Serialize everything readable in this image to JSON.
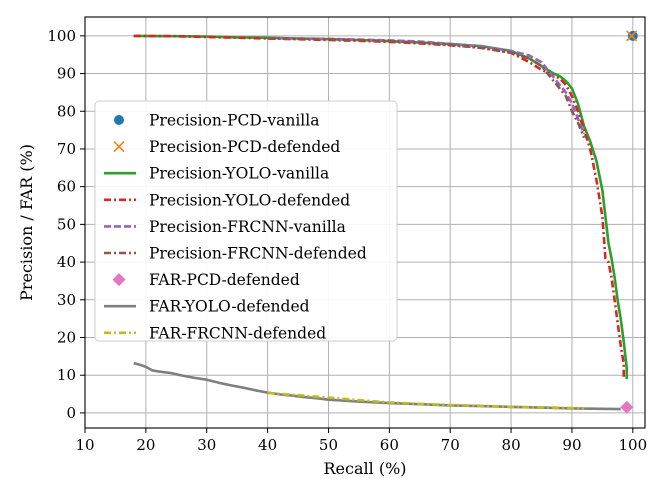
{
  "chart_data": {
    "type": "line",
    "title": "",
    "xlabel": "Recall (%)",
    "ylabel": "Precision / FAR (%)",
    "xlim": [
      10,
      102
    ],
    "ylim": [
      -4,
      105
    ],
    "xticks": [
      10,
      20,
      30,
      40,
      50,
      60,
      70,
      80,
      90,
      100
    ],
    "yticks": [
      0,
      10,
      20,
      30,
      40,
      50,
      60,
      70,
      80,
      90,
      100
    ],
    "grid": true,
    "legend_position": "center-left",
    "series": [
      {
        "name": "Precision-PCD-vanilla",
        "kind": "marker",
        "marker": "circle",
        "color": "#1f77b4",
        "x": [
          100
        ],
        "y": [
          100
        ]
      },
      {
        "name": "Precision-PCD-defended",
        "kind": "marker",
        "marker": "x",
        "color": "#ff7f0e",
        "x": [
          99.8
        ],
        "y": [
          100
        ]
      },
      {
        "name": "Precision-YOLO-vanilla",
        "kind": "line",
        "dash": "solid",
        "color": "#2ca02c",
        "x": [
          18,
          25,
          30,
          35,
          40,
          45,
          50,
          55,
          60,
          65,
          70,
          75,
          80,
          83,
          85,
          87,
          88,
          89,
          90,
          91,
          92,
          93,
          94,
          95,
          96,
          96.5,
          97,
          97.5,
          98,
          98.5,
          99,
          99
        ],
        "y": [
          100,
          99.9,
          99.8,
          99.6,
          99.5,
          99.3,
          99.1,
          98.9,
          98.6,
          98.2,
          97.8,
          97.3,
          96,
          94,
          92,
          90,
          89.3,
          88,
          86,
          82,
          76,
          72,
          67,
          59,
          45,
          41,
          36,
          30,
          25,
          19,
          12,
          9
        ]
      },
      {
        "name": "Precision-YOLO-defended",
        "kind": "line",
        "dash": "dashdot",
        "color": "#d62728",
        "x": [
          18,
          25,
          30,
          35,
          40,
          45,
          50,
          55,
          60,
          65,
          70,
          75,
          80,
          83,
          85,
          87,
          88,
          89,
          90,
          91,
          92,
          93,
          94,
          95,
          95.5,
          96,
          96.5,
          97,
          97.5,
          98,
          98.5,
          98.5
        ],
        "y": [
          100,
          99.9,
          99.7,
          99.5,
          99.3,
          99.1,
          98.9,
          98.7,
          98.4,
          98,
          97.5,
          96.9,
          95.5,
          93,
          91,
          89.5,
          88.7,
          87,
          84,
          80,
          75,
          70,
          62,
          52,
          41,
          40,
          36,
          30,
          24,
          18,
          13,
          9
        ]
      },
      {
        "name": "Precision-FRCNN-vanilla",
        "kind": "line",
        "dash": "dashed",
        "color": "#9467bd",
        "x": [
          40,
          45,
          50,
          55,
          60,
          65,
          70,
          75,
          80,
          83,
          85,
          87,
          88,
          89,
          90,
          91,
          92
        ],
        "y": [
          99.4,
          99.3,
          99.2,
          99,
          98.8,
          98.5,
          97.9,
          97.2,
          96,
          94.8,
          93,
          89,
          87,
          85,
          82,
          78,
          74
        ]
      },
      {
        "name": "Precision-FRCNN-defended",
        "kind": "line",
        "dash": "dashdot",
        "color": "#8c564b",
        "x": [
          40,
          45,
          50,
          55,
          60,
          65,
          70,
          75,
          80,
          83,
          85,
          87,
          88,
          89,
          90,
          91,
          92
        ],
        "y": [
          99.3,
          99.2,
          99.1,
          98.9,
          98.6,
          98.2,
          97.6,
          96.8,
          95.5,
          94,
          92,
          88,
          86,
          84,
          80,
          77,
          73
        ]
      },
      {
        "name": "FAR-PCD-defended",
        "kind": "marker",
        "marker": "diamond",
        "color": "#e377c2",
        "x": [
          99
        ],
        "y": [
          1.5
        ]
      },
      {
        "name": "FAR-YOLO-defended",
        "kind": "line",
        "dash": "solid",
        "color": "#7f7f7f",
        "x": [
          18,
          19,
          20,
          21,
          22,
          24,
          26,
          28,
          30,
          32,
          34,
          36,
          38,
          40,
          42,
          44,
          46,
          48,
          50,
          55,
          60,
          65,
          70,
          75,
          80,
          85,
          90,
          95,
          98
        ],
        "y": [
          13.2,
          12.8,
          12.2,
          11.3,
          11,
          10.6,
          9.9,
          9.3,
          8.8,
          8,
          7.3,
          6.7,
          6,
          5.4,
          4.9,
          4.6,
          4.2,
          3.9,
          3.5,
          3,
          2.6,
          2.3,
          2,
          1.8,
          1.6,
          1.4,
          1.2,
          1.1,
          1
        ]
      },
      {
        "name": "FAR-FRCNN-defended",
        "kind": "line",
        "dash": "dashdot",
        "color": "#bcbd22",
        "x": [
          40,
          45,
          50,
          55,
          60,
          65,
          70,
          75,
          80,
          85,
          90,
          92
        ],
        "y": [
          5.3,
          4.7,
          4.1,
          3.4,
          2.8,
          2.4,
          2.1,
          1.9,
          1.6,
          1.5,
          1.3,
          1.2
        ]
      }
    ]
  }
}
